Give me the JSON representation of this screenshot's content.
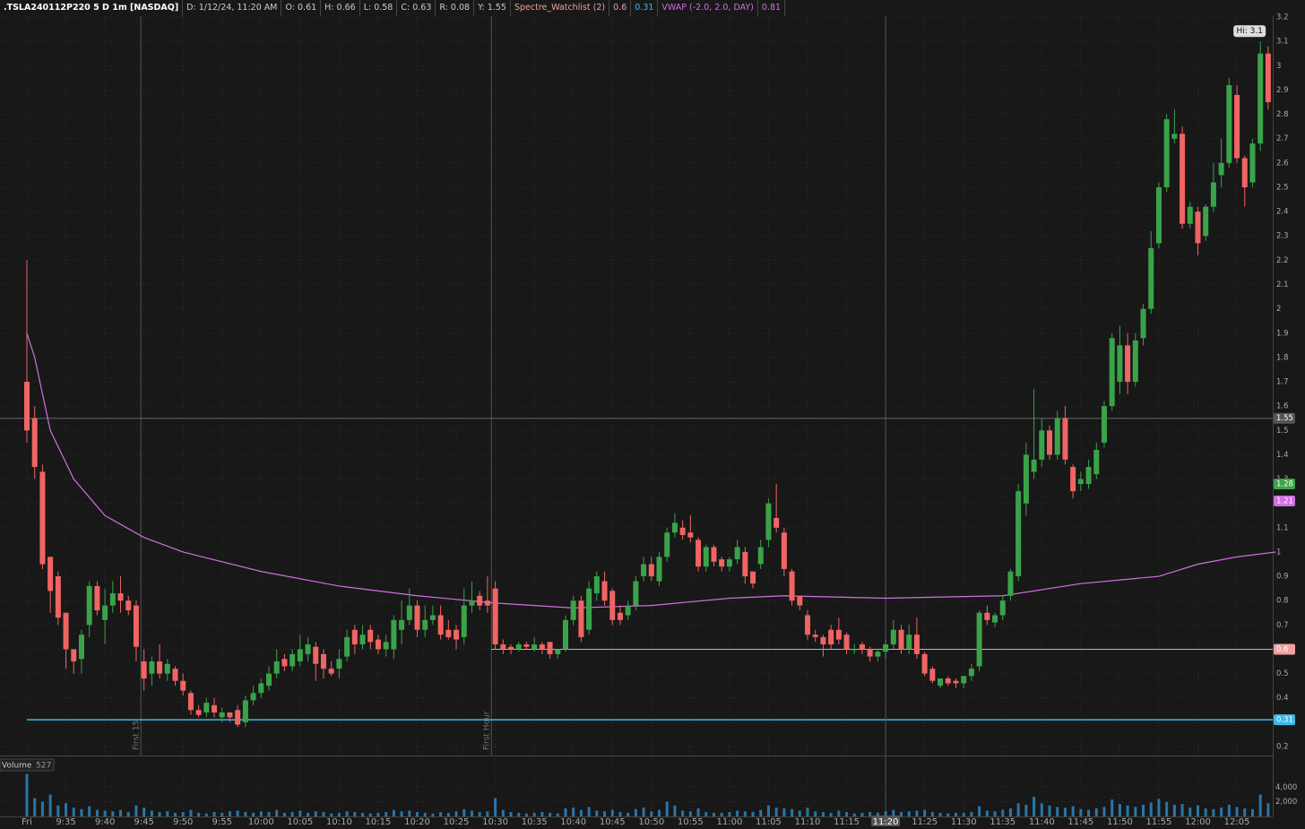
{
  "header": {
    "symbol": ".TSLA240112P220 5 D 1m [NASDAQ]",
    "fields": [
      "D: 1/12/24, 11:20 AM",
      "O: 0.61",
      "H: 0.66",
      "L: 0.58",
      "C: 0.63",
      "R: 0.08",
      "Y: 1.55"
    ],
    "study": "Spectre_Watchlist (2)",
    "study_values": [
      {
        "text": "0.6",
        "color": "#f0a0a0"
      },
      {
        "text": "0.31",
        "color": "#3fb8e8"
      }
    ],
    "vwap_name": "VWAP (-2.0, 2.0, DAY)",
    "vwap_value": "0.81"
  },
  "chart_data": {
    "type": "candlestick",
    "ylim": [
      0.163,
      3.204
    ],
    "yticks": [
      0.2,
      0.3,
      0.4,
      0.5,
      0.6,
      0.7,
      0.8,
      0.9,
      1,
      1.1,
      1.2,
      1.3,
      1.4,
      1.5,
      1.6,
      1.7,
      1.8,
      1.9,
      2,
      2.1,
      2.2,
      2.3,
      2.4,
      2.5,
      2.6,
      2.7,
      2.8,
      2.9,
      3,
      3.1,
      3.2
    ],
    "xlim": [
      -0.5,
      160.5
    ],
    "xticks": [
      {
        "value": 0,
        "label": "Fri"
      },
      {
        "value": 5,
        "label": "9:35"
      },
      {
        "value": 10,
        "label": "9:40"
      },
      {
        "value": 15,
        "label": "9:45"
      },
      {
        "value": 20,
        "label": "9:50"
      },
      {
        "value": 25,
        "label": "9:55"
      },
      {
        "value": 30,
        "label": "10:00"
      },
      {
        "value": 35,
        "label": "10:05"
      },
      {
        "value": 40,
        "label": "10:10"
      },
      {
        "value": 45,
        "label": "10:15"
      },
      {
        "value": 50,
        "label": "10:20"
      },
      {
        "value": 55,
        "label": "10:25"
      },
      {
        "value": 60,
        "label": "10:30"
      },
      {
        "value": 65,
        "label": "10:35"
      },
      {
        "value": 70,
        "label": "10:40"
      },
      {
        "value": 75,
        "label": "10:45"
      },
      {
        "value": 80,
        "label": "10:50"
      },
      {
        "value": 85,
        "label": "10:55"
      },
      {
        "value": 90,
        "label": "11:00"
      },
      {
        "value": 95,
        "label": "11:05"
      },
      {
        "value": 100,
        "label": "11:10"
      },
      {
        "value": 105,
        "label": "11:15"
      },
      {
        "value": 110,
        "label": "11:20"
      },
      {
        "value": 115,
        "label": "11:25"
      },
      {
        "value": 120,
        "label": "11:30"
      },
      {
        "value": 125,
        "label": "11:35"
      },
      {
        "value": 130,
        "label": "11:40"
      },
      {
        "value": 135,
        "label": "11:45"
      },
      {
        "value": 140,
        "label": "11:50"
      },
      {
        "value": 145,
        "label": "11:55"
      },
      {
        "value": 150,
        "label": "12:00"
      },
      {
        "value": 155,
        "label": "12:05"
      }
    ],
    "up_color": "#3aa34a",
    "down_color": "#f06464",
    "candles": {
      "open": [
        1.7,
        1.55,
        1.33,
        0.98,
        0.9,
        0.75,
        0.6,
        0.56,
        0.7,
        0.86,
        0.72,
        0.78,
        0.83,
        0.8,
        0.78,
        0.55,
        0.5,
        0.55,
        0.5,
        0.52,
        0.47,
        0.42,
        0.35,
        0.34,
        0.37,
        0.32,
        0.34,
        0.35,
        0.3,
        0.39,
        0.42,
        0.45,
        0.5,
        0.56,
        0.53,
        0.55,
        0.58,
        0.61,
        0.58,
        0.52,
        0.52,
        0.57,
        0.68,
        0.62,
        0.68,
        0.64,
        0.6,
        0.6,
        0.68,
        0.72,
        0.78,
        0.68,
        0.72,
        0.74,
        0.68,
        0.68,
        0.65,
        0.78,
        0.82,
        0.8,
        0.85,
        0.62,
        0.61,
        0.6,
        0.62,
        0.6,
        0.62,
        0.63,
        0.58,
        0.6,
        0.72,
        0.8,
        0.68,
        0.83,
        0.88,
        0.84,
        0.75,
        0.74,
        0.78,
        0.9,
        0.95,
        0.88,
        0.98,
        1.08,
        1.1,
        1.08,
        1.05,
        0.94,
        1.02,
        0.97,
        0.94,
        0.97,
        1.0,
        0.92,
        0.95,
        1.05,
        1.14,
        1.08,
        0.92,
        0.82,
        0.74,
        0.66,
        0.65,
        0.68,
        0.68,
        0.66,
        0.6,
        0.62,
        0.6,
        0.57,
        0.59,
        0.62,
        0.68,
        0.6,
        0.66,
        0.58,
        0.52,
        0.45,
        0.48,
        0.47,
        0.46,
        0.49,
        0.53,
        0.75,
        0.71,
        0.74,
        0.82,
        0.9,
        1.2,
        1.33,
        1.38,
        1.5,
        1.4,
        1.55,
        1.35,
        1.28,
        1.28,
        1.32,
        1.45,
        1.6,
        1.7,
        1.85,
        1.7,
        1.88,
        2.0,
        2.27,
        2.5,
        2.7,
        2.72,
        2.35,
        2.4,
        2.3,
        2.42,
        2.55,
        2.6,
        2.88,
        2.62,
        2.52,
        2.68,
        3.05
      ],
      "high": [
        2.2,
        1.6,
        1.36,
        0.98,
        0.92,
        0.75,
        0.6,
        0.68,
        0.88,
        0.88,
        0.85,
        0.88,
        0.9,
        0.82,
        0.8,
        0.6,
        0.57,
        0.62,
        0.56,
        0.53,
        0.5,
        0.43,
        0.37,
        0.4,
        0.4,
        0.36,
        0.34,
        0.37,
        0.41,
        0.45,
        0.48,
        0.53,
        0.6,
        0.58,
        0.6,
        0.66,
        0.65,
        0.63,
        0.6,
        0.55,
        0.6,
        0.68,
        0.7,
        0.7,
        0.7,
        0.66,
        0.66,
        0.74,
        0.8,
        0.85,
        0.8,
        0.78,
        0.78,
        0.78,
        0.72,
        0.7,
        0.85,
        0.88,
        0.84,
        0.9,
        0.88,
        0.64,
        0.62,
        0.63,
        0.63,
        0.65,
        0.63,
        0.63,
        0.6,
        0.74,
        0.82,
        0.82,
        0.88,
        0.92,
        0.92,
        0.85,
        0.78,
        0.8,
        0.9,
        0.98,
        0.98,
        1.0,
        1.1,
        1.16,
        1.13,
        1.15,
        1.06,
        1.03,
        1.03,
        0.98,
        0.98,
        1.05,
        1.02,
        0.92,
        1.05,
        1.22,
        1.28,
        1.1,
        0.93,
        0.82,
        0.76,
        0.68,
        0.66,
        0.7,
        0.73,
        0.67,
        0.62,
        0.63,
        0.61,
        0.6,
        0.64,
        0.72,
        0.7,
        0.7,
        0.73,
        0.59,
        0.53,
        0.48,
        0.49,
        0.48,
        0.49,
        0.54,
        0.76,
        0.78,
        0.75,
        0.82,
        0.93,
        1.28,
        1.45,
        1.67,
        1.55,
        1.52,
        1.58,
        1.6,
        1.36,
        1.33,
        1.38,
        1.45,
        1.62,
        1.9,
        1.93,
        1.9,
        1.9,
        2.02,
        2.32,
        2.52,
        2.8,
        2.82,
        2.75,
        2.44,
        2.42,
        2.43,
        2.6,
        2.7,
        2.95,
        2.92,
        2.63,
        2.7,
        3.1,
        3.08
      ],
      "low": [
        1.45,
        1.3,
        0.93,
        0.75,
        0.7,
        0.52,
        0.5,
        0.5,
        0.65,
        0.74,
        0.62,
        0.75,
        0.75,
        0.74,
        0.55,
        0.43,
        0.45,
        0.48,
        0.47,
        0.45,
        0.41,
        0.33,
        0.32,
        0.32,
        0.32,
        0.3,
        0.3,
        0.28,
        0.28,
        0.37,
        0.4,
        0.43,
        0.48,
        0.51,
        0.51,
        0.53,
        0.55,
        0.47,
        0.48,
        0.49,
        0.48,
        0.55,
        0.58,
        0.6,
        0.6,
        0.58,
        0.57,
        0.56,
        0.62,
        0.7,
        0.65,
        0.65,
        0.7,
        0.64,
        0.64,
        0.6,
        0.62,
        0.75,
        0.76,
        0.75,
        0.6,
        0.58,
        0.58,
        0.59,
        0.6,
        0.59,
        0.58,
        0.56,
        0.56,
        0.59,
        0.7,
        0.63,
        0.66,
        0.8,
        0.78,
        0.7,
        0.7,
        0.72,
        0.76,
        0.88,
        0.88,
        0.86,
        0.96,
        1.06,
        1.05,
        1.04,
        0.92,
        0.92,
        0.94,
        0.92,
        0.92,
        0.95,
        0.87,
        0.85,
        0.93,
        1.02,
        1.08,
        0.9,
        0.78,
        0.76,
        0.64,
        0.63,
        0.57,
        0.6,
        0.62,
        0.58,
        0.58,
        0.58,
        0.55,
        0.55,
        0.56,
        0.6,
        0.58,
        0.58,
        0.56,
        0.49,
        0.46,
        0.44,
        0.45,
        0.44,
        0.44,
        0.47,
        0.51,
        0.7,
        0.69,
        0.72,
        0.8,
        0.88,
        1.15,
        1.3,
        1.35,
        1.38,
        1.38,
        1.36,
        1.22,
        1.25,
        1.26,
        1.3,
        1.43,
        1.58,
        1.65,
        1.65,
        1.68,
        1.85,
        1.98,
        2.25,
        2.48,
        2.68,
        2.33,
        2.33,
        2.22,
        2.28,
        2.4,
        2.5,
        2.58,
        2.6,
        2.42,
        2.5,
        2.65,
        2.82
      ],
      "close": [
        1.5,
        1.35,
        0.95,
        0.84,
        0.73,
        0.6,
        0.55,
        0.66,
        0.86,
        0.76,
        0.78,
        0.83,
        0.8,
        0.76,
        0.61,
        0.48,
        0.55,
        0.5,
        0.54,
        0.47,
        0.43,
        0.35,
        0.33,
        0.38,
        0.34,
        0.34,
        0.32,
        0.29,
        0.39,
        0.42,
        0.46,
        0.5,
        0.55,
        0.53,
        0.58,
        0.6,
        0.62,
        0.54,
        0.52,
        0.5,
        0.56,
        0.65,
        0.62,
        0.66,
        0.63,
        0.6,
        0.63,
        0.72,
        0.72,
        0.78,
        0.68,
        0.72,
        0.74,
        0.66,
        0.65,
        0.64,
        0.78,
        0.8,
        0.78,
        0.78,
        0.62,
        0.6,
        0.6,
        0.62,
        0.61,
        0.62,
        0.6,
        0.58,
        0.6,
        0.72,
        0.8,
        0.65,
        0.85,
        0.9,
        0.8,
        0.72,
        0.72,
        0.78,
        0.88,
        0.95,
        0.9,
        0.98,
        1.08,
        1.12,
        1.07,
        1.06,
        0.94,
        1.02,
        0.96,
        0.94,
        0.97,
        1.02,
        0.9,
        0.87,
        1.02,
        1.2,
        1.1,
        0.93,
        0.8,
        0.78,
        0.66,
        0.65,
        0.62,
        0.62,
        0.64,
        0.6,
        0.6,
        0.6,
        0.57,
        0.59,
        0.62,
        0.68,
        0.6,
        0.66,
        0.58,
        0.5,
        0.47,
        0.48,
        0.46,
        0.46,
        0.49,
        0.52,
        0.75,
        0.72,
        0.74,
        0.8,
        0.92,
        1.25,
        1.4,
        1.38,
        1.5,
        1.4,
        1.55,
        1.38,
        1.25,
        1.3,
        1.35,
        1.42,
        1.6,
        1.88,
        1.85,
        1.7,
        1.87,
        2.0,
        2.25,
        2.5,
        2.78,
        2.72,
        2.35,
        2.42,
        2.27,
        2.42,
        2.52,
        2.6,
        2.92,
        2.62,
        2.5,
        2.68,
        3.05,
        2.85
      ]
    },
    "vwap": {
      "color": "#d070e0",
      "x": [
        0,
        1,
        3,
        6,
        10,
        15,
        20,
        30,
        40,
        50,
        60,
        70,
        80,
        90,
        97,
        110,
        125,
        135,
        145,
        150,
        155,
        160
      ],
      "values": [
        1.9,
        1.8,
        1.5,
        1.3,
        1.15,
        1.06,
        1.0,
        0.92,
        0.86,
        0.82,
        0.79,
        0.77,
        0.78,
        0.81,
        0.82,
        0.81,
        0.82,
        0.87,
        0.9,
        0.95,
        0.98,
        1.0
      ]
    },
    "levels": [
      {
        "value": 0.6,
        "from": 59.5,
        "color": "#f0a0a0"
      },
      {
        "value": 0.31,
        "from": 0,
        "color": "#3fb8e8"
      }
    ],
    "price_markers": [
      {
        "value": 1.28,
        "color": "#3aa34a"
      },
      {
        "value": 1.21,
        "color": "#d070e0"
      },
      {
        "value": 0.6,
        "color": "#f0a0a0"
      },
      {
        "value": 0.31,
        "color": "#3fb8e8"
      }
    ],
    "high_marker": {
      "value": 3.1,
      "x": 158,
      "label": "Hi: 3.1"
    },
    "session_markers": [
      {
        "x": 14.6,
        "label": "First 15"
      },
      {
        "x": 59.5,
        "label": "First Hour"
      }
    ],
    "crosshair": {
      "x": 110,
      "y": 1.55
    },
    "volume": {
      "title": "Volume",
      "last": "527",
      "color": "#2a76a8",
      "ylim": [
        0,
        6000
      ],
      "yticks": [
        {
          "value": 2000,
          "label": "2,000"
        },
        {
          "value": 4000,
          "label": "4,000"
        }
      ],
      "values": [
        5800,
        2500,
        2000,
        3000,
        1500,
        1800,
        1200,
        1000,
        1400,
        900,
        800,
        700,
        900,
        600,
        1500,
        1200,
        800,
        600,
        700,
        500,
        600,
        900,
        500,
        400,
        600,
        500,
        700,
        800,
        600,
        500,
        700,
        600,
        900,
        500,
        600,
        800,
        500,
        700,
        600,
        400,
        500,
        700,
        600,
        500,
        400,
        500,
        600,
        900,
        700,
        800,
        600,
        500,
        400,
        600,
        500,
        700,
        1000,
        800,
        600,
        700,
        2500,
        900,
        600,
        500,
        400,
        500,
        600,
        500,
        400,
        1100,
        1200,
        900,
        1300,
        800,
        700,
        900,
        600,
        500,
        1000,
        1200,
        700,
        900,
        2000,
        1500,
        800,
        700,
        1100,
        600,
        500,
        500,
        600,
        800,
        700,
        600,
        900,
        1500,
        1200,
        1100,
        1000,
        800,
        1200,
        700,
        600,
        500,
        800,
        600,
        400,
        500,
        600,
        500,
        700,
        900,
        600,
        700,
        800,
        900,
        600,
        500,
        400,
        500,
        500,
        600,
        1400,
        800,
        700,
        900,
        1100,
        1800,
        1600,
        2700,
        1800,
        1500,
        1300,
        1200,
        1400,
        1000,
        900,
        1100,
        1300,
        2300,
        1700,
        1500,
        1300,
        1600,
        1900,
        2400,
        2000,
        1600,
        1700,
        1200,
        1500,
        1100,
        1000,
        1200,
        1600,
        1300,
        1100,
        1000,
        3000,
        1800
      ]
    }
  }
}
